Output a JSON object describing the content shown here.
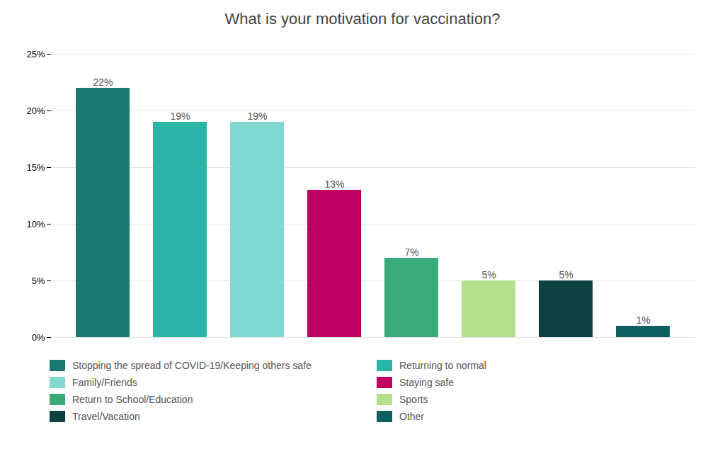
{
  "chart_data": {
    "type": "bar",
    "title": "What is your motivation for vaccination?",
    "categories": [
      "Stopping the spread of COVID-19/Keeping others safe",
      "Returning to normal",
      "Family/Friends",
      "Staying safe",
      "Return to School/Education",
      "Sports",
      "Travel/Vacation",
      "Other"
    ],
    "values": [
      0.22,
      0.19,
      0.19,
      0.13,
      0.07,
      0.05,
      0.05,
      0.01
    ],
    "value_labels": [
      "22%",
      "19%",
      "19%",
      "13%",
      "7%",
      "5%",
      "5%",
      "1%"
    ],
    "data_labels": true,
    "colors": [
      "#1a7a72",
      "#2ab5a8",
      "#80d8d0",
      "#bf0063",
      "#3aaa7a",
      "#b5df8c",
      "#0d4040",
      "#0d6060"
    ],
    "ylim": [
      0,
      0.25
    ],
    "yticks": [
      {
        "value": 0.0,
        "label": "0%"
      },
      {
        "value": 0.05,
        "label": "5%"
      },
      {
        "value": 0.1,
        "label": "10%"
      },
      {
        "value": 0.15,
        "label": "15%"
      },
      {
        "value": 0.2,
        "label": "20%"
      },
      {
        "value": 0.25,
        "label": "25%"
      }
    ],
    "grid": true,
    "tick_labels": "y",
    "legend": "bottom"
  }
}
